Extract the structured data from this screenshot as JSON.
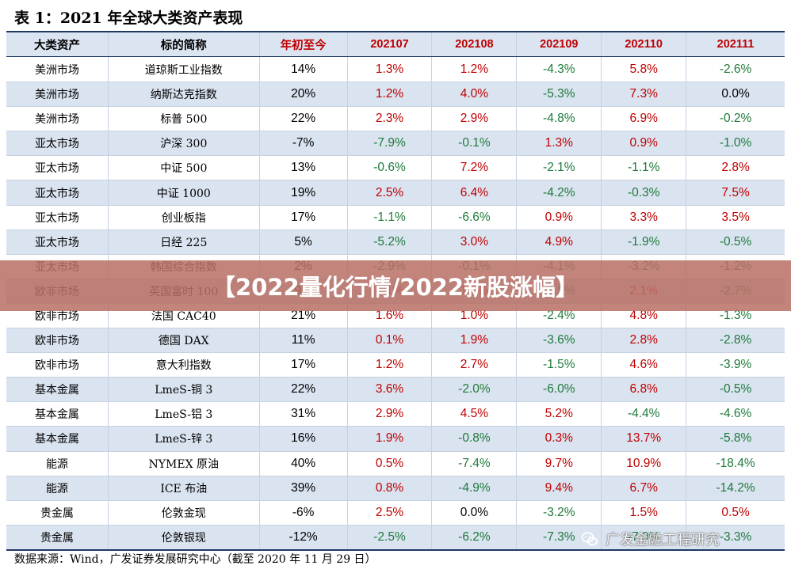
{
  "title": "表 1：2021 年全球大类资产表现",
  "columns": [
    "大类资产",
    "标的简称",
    "年初至今",
    "202107",
    "202108",
    "202109",
    "202110",
    "202111"
  ],
  "rows": [
    [
      "美洲市场",
      "道琼斯工业指数",
      "14%",
      "1.3%",
      "1.2%",
      "-4.3%",
      "5.8%",
      "-2.6%"
    ],
    [
      "美洲市场",
      "纳斯达克指数",
      "20%",
      "1.2%",
      "4.0%",
      "-5.3%",
      "7.3%",
      "0.0%"
    ],
    [
      "美洲市场",
      "标普 500",
      "22%",
      "2.3%",
      "2.9%",
      "-4.8%",
      "6.9%",
      "-0.2%"
    ],
    [
      "亚太市场",
      "沪深 300",
      "-7%",
      "-7.9%",
      "-0.1%",
      "1.3%",
      "0.9%",
      "-1.0%"
    ],
    [
      "亚太市场",
      "中证 500",
      "13%",
      "-0.6%",
      "7.2%",
      "-2.1%",
      "-1.1%",
      "2.8%"
    ],
    [
      "亚太市场",
      "中证 1000",
      "19%",
      "2.5%",
      "6.4%",
      "-4.2%",
      "-0.3%",
      "7.5%"
    ],
    [
      "亚太市场",
      "创业板指",
      "17%",
      "-1.1%",
      "-6.6%",
      "0.9%",
      "3.3%",
      "3.5%"
    ],
    [
      "亚太市场",
      "日经 225",
      "5%",
      "-5.2%",
      "3.0%",
      "4.9%",
      "-1.9%",
      "-0.5%"
    ],
    [
      "亚太市场",
      "韩国综合指数",
      "2%",
      "-2.9%",
      "-0.1%",
      "-4.1%",
      "-3.2%",
      "-1.2%"
    ],
    [
      "欧非市场",
      "英国富时 100",
      "9%",
      "0.1%",
      "1.2%",
      "-0.5%",
      "2.1%",
      "-2.7%"
    ],
    [
      "欧非市场",
      "法国 CAC40",
      "21%",
      "1.6%",
      "1.0%",
      "-2.4%",
      "4.8%",
      "-1.3%"
    ],
    [
      "欧非市场",
      "德国 DAX",
      "11%",
      "0.1%",
      "1.9%",
      "-3.6%",
      "2.8%",
      "-2.8%"
    ],
    [
      "欧非市场",
      "意大利指数",
      "17%",
      "1.2%",
      "2.7%",
      "-1.5%",
      "4.6%",
      "-3.9%"
    ],
    [
      "基本金属",
      "LmeS-铜 3",
      "22%",
      "3.6%",
      "-2.0%",
      "-6.0%",
      "6.8%",
      "-0.5%"
    ],
    [
      "基本金属",
      "LmeS-铝 3",
      "31%",
      "2.9%",
      "4.5%",
      "5.2%",
      "-4.4%",
      "-4.6%"
    ],
    [
      "基本金属",
      "LmeS-锌 3",
      "16%",
      "1.9%",
      "-0.8%",
      "0.3%",
      "13.7%",
      "-5.8%"
    ],
    [
      "能源",
      "NYMEX 原油",
      "40%",
      "0.5%",
      "-7.4%",
      "9.7%",
      "10.9%",
      "-18.4%"
    ],
    [
      "能源",
      "ICE 布油",
      "39%",
      "0.8%",
      "-4.9%",
      "9.4%",
      "6.7%",
      "-14.2%"
    ],
    [
      "贵金属",
      "伦敦金现",
      "-6%",
      "2.5%",
      "0.0%",
      "-3.2%",
      "1.5%",
      "0.5%"
    ],
    [
      "贵金属",
      "伦敦银现",
      "-12%",
      "-2.5%",
      "-6.2%",
      "-7.3%",
      "-7.9%",
      "-3.3%"
    ]
  ],
  "source": "数据来源：Wind，广发证券发展研究中心（截至 2020 年 11 月 29 日）",
  "banner": "【2022量化行情/2022新股涨幅】",
  "watermark": "广发金融工程研究",
  "colors": {
    "positive": "#c00000",
    "negative": "#1f7a3a",
    "header_bg": "#dbe4f1",
    "alt_row_bg": "#dae3f0",
    "banner_bg": "#b87065"
  },
  "icons": {
    "watermark": "wechat-icon"
  }
}
